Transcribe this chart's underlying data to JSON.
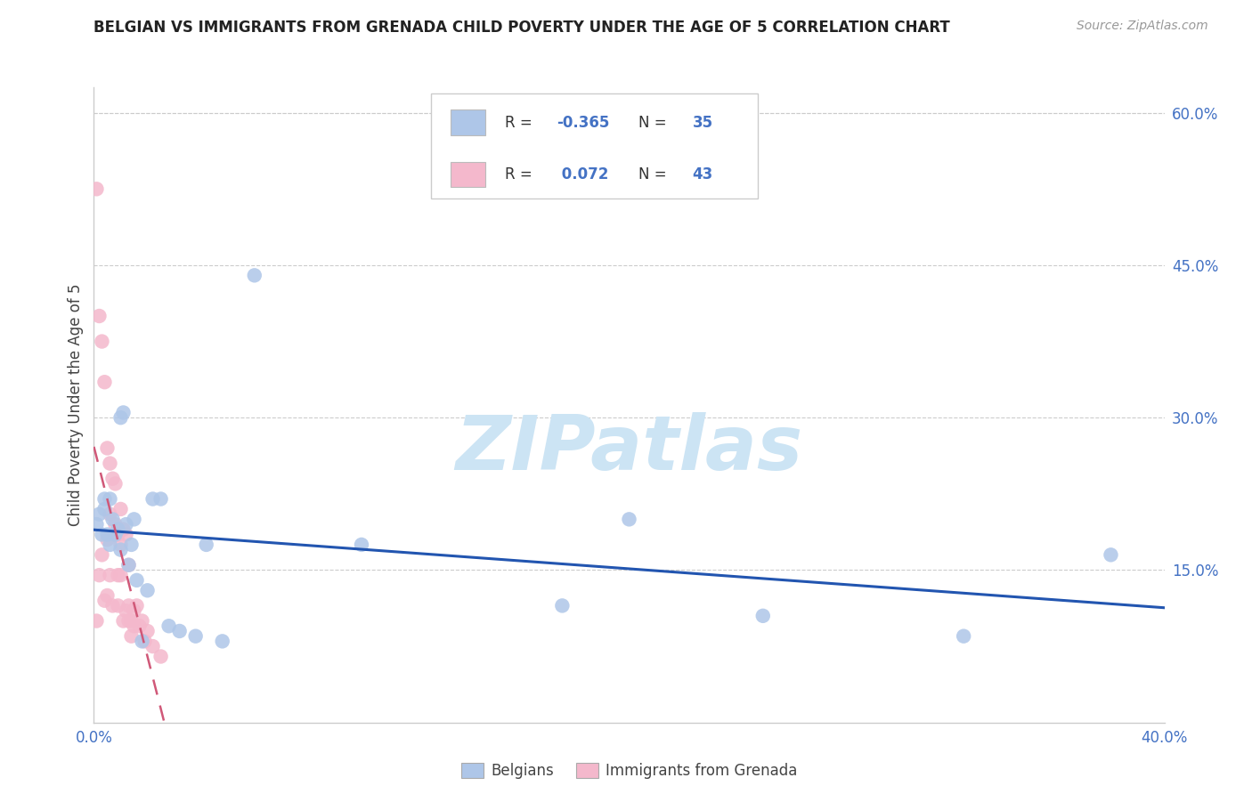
{
  "title": "BELGIAN VS IMMIGRANTS FROM GRENADA CHILD POVERTY UNDER THE AGE OF 5 CORRELATION CHART",
  "source": "Source: ZipAtlas.com",
  "ylabel": "Child Poverty Under the Age of 5",
  "xlim": [
    0.0,
    0.4
  ],
  "ylim": [
    0.0,
    0.625
  ],
  "xtick_vals": [
    0.0,
    0.4
  ],
  "xtick_labels": [
    "0.0%",
    "40.0%"
  ],
  "ytick_right_vals": [
    0.0,
    0.15,
    0.3,
    0.45,
    0.6
  ],
  "ytick_right_labels": [
    "",
    "15.0%",
    "30.0%",
    "45.0%",
    "60.0%"
  ],
  "tick_color": "#4472c4",
  "belgian_color": "#aec6e8",
  "grenada_color": "#f4b8cc",
  "belgian_line_color": "#2255b0",
  "grenada_line_color": "#d05878",
  "watermark": "ZIPatlas",
  "watermark_color": "#cce4f4",
  "belgian_R": -0.365,
  "belgian_N": 35,
  "grenada_R": 0.072,
  "grenada_N": 43,
  "legend_text_color": "#4472c4",
  "legend_label_color": "#333333",
  "belgian_x": [
    0.001,
    0.002,
    0.003,
    0.004,
    0.004,
    0.005,
    0.006,
    0.006,
    0.007,
    0.008,
    0.009,
    0.01,
    0.01,
    0.011,
    0.012,
    0.013,
    0.014,
    0.015,
    0.016,
    0.018,
    0.02,
    0.022,
    0.025,
    0.028,
    0.032,
    0.038,
    0.042,
    0.048,
    0.06,
    0.1,
    0.175,
    0.2,
    0.25,
    0.325,
    0.38
  ],
  "belgian_y": [
    0.195,
    0.205,
    0.185,
    0.21,
    0.22,
    0.185,
    0.175,
    0.22,
    0.2,
    0.185,
    0.19,
    0.17,
    0.3,
    0.305,
    0.195,
    0.155,
    0.175,
    0.2,
    0.14,
    0.08,
    0.13,
    0.22,
    0.22,
    0.095,
    0.09,
    0.085,
    0.175,
    0.08,
    0.44,
    0.175,
    0.115,
    0.2,
    0.105,
    0.085,
    0.165
  ],
  "grenada_x": [
    0.001,
    0.001,
    0.002,
    0.002,
    0.003,
    0.003,
    0.004,
    0.004,
    0.005,
    0.005,
    0.005,
    0.006,
    0.006,
    0.006,
    0.007,
    0.007,
    0.008,
    0.008,
    0.008,
    0.009,
    0.009,
    0.009,
    0.01,
    0.01,
    0.01,
    0.011,
    0.011,
    0.012,
    0.012,
    0.013,
    0.013,
    0.013,
    0.014,
    0.014,
    0.015,
    0.015,
    0.016,
    0.017,
    0.018,
    0.019,
    0.02,
    0.022,
    0.025
  ],
  "grenada_y": [
    0.525,
    0.1,
    0.4,
    0.145,
    0.375,
    0.165,
    0.335,
    0.12,
    0.27,
    0.18,
    0.125,
    0.255,
    0.205,
    0.145,
    0.24,
    0.115,
    0.235,
    0.195,
    0.185,
    0.185,
    0.145,
    0.115,
    0.21,
    0.175,
    0.145,
    0.19,
    0.1,
    0.185,
    0.11,
    0.155,
    0.115,
    0.1,
    0.1,
    0.085,
    0.11,
    0.095,
    0.115,
    0.095,
    0.1,
    0.08,
    0.09,
    0.075,
    0.065
  ],
  "grid_color": "#cccccc",
  "grid_linestyle": "--",
  "grid_linewidth": 0.8
}
